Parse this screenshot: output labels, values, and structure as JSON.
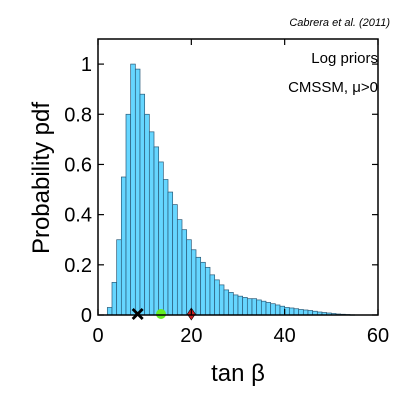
{
  "chart_data": {
    "type": "bar",
    "credit": "Cabrera et al. (2011)",
    "annotations": [
      "Log priors",
      "CMSSM, μ>0"
    ],
    "xlabel": "tan β",
    "ylabel": "Probability pdf",
    "xlim": [
      0,
      60
    ],
    "ylim": [
      0,
      1.1
    ],
    "xticks": [
      "0",
      "20",
      "40",
      "60"
    ],
    "yticks": [
      "0",
      "0.2",
      "0.4",
      "0.6",
      "0.8",
      "1"
    ],
    "bin_width": 1,
    "bin_start": 2,
    "values": [
      0.03,
      0.13,
      0.3,
      0.55,
      0.8,
      1.0,
      0.98,
      0.88,
      0.8,
      0.73,
      0.67,
      0.61,
      0.54,
      0.49,
      0.44,
      0.38,
      0.34,
      0.3,
      0.26,
      0.23,
      0.21,
      0.19,
      0.16,
      0.14,
      0.12,
      0.1,
      0.09,
      0.08,
      0.075,
      0.07,
      0.065,
      0.065,
      0.06,
      0.055,
      0.05,
      0.045,
      0.04,
      0.035,
      0.03,
      0.028,
      0.025,
      0.022,
      0.02,
      0.018,
      0.015,
      0.012,
      0.01,
      0.008,
      0.006,
      0.004,
      0.003,
      0.002,
      0.001
    ],
    "markers": [
      {
        "symbol": "cross",
        "x": 8.5,
        "color": "#000000"
      },
      {
        "symbol": "circle",
        "x": 13.5,
        "color": "#66ee22"
      },
      {
        "symbol": "diamond",
        "x": 20,
        "color": "#cc2222"
      }
    ],
    "colors": {
      "bar_fill": "#66d6ff",
      "bar_edge": "#2a5a78"
    }
  }
}
